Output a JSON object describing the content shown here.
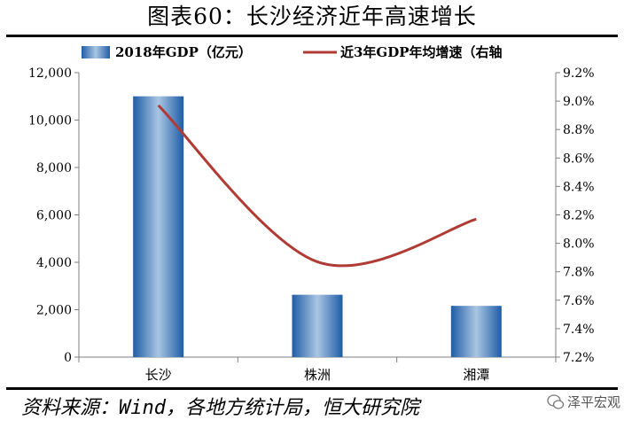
{
  "title": "图表60：长沙经济近年高速增长",
  "source": "资料来源：Wind，各地方统计局，恒大研究院",
  "watermark": "泽平宏观",
  "colors": {
    "bar_light": "#a9c5e3",
    "bar_dark": "#1f5da6",
    "line": "#b03a34",
    "axis": "#7f7f7f"
  },
  "chart_data": {
    "type": "bar",
    "title": "",
    "categories": [
      "长沙",
      "株洲",
      "湘潭"
    ],
    "series": [
      {
        "name": "2018年GDP（亿元）",
        "type": "bar",
        "axis": "left",
        "values": [
          11003,
          2631,
          2162
        ]
      },
      {
        "name": "近3年GDP年均增速（右轴",
        "type": "line",
        "axis": "right",
        "values": [
          8.97,
          7.87,
          8.17
        ]
      }
    ],
    "y_left": {
      "min": 0,
      "max": 12000,
      "step": 2000,
      "tick_labels": [
        "0",
        "2,000",
        "4,000",
        "6,000",
        "8,000",
        "10,000",
        "12,000"
      ]
    },
    "y_right": {
      "min": 7.2,
      "max": 9.2,
      "step": 0.2,
      "tick_labels": [
        "7.2%",
        "7.4%",
        "7.6%",
        "7.8%",
        "8.0%",
        "8.2%",
        "8.4%",
        "8.6%",
        "8.8%",
        "9.0%",
        "9.2%"
      ]
    },
    "grid": false,
    "legend_position": "top"
  }
}
